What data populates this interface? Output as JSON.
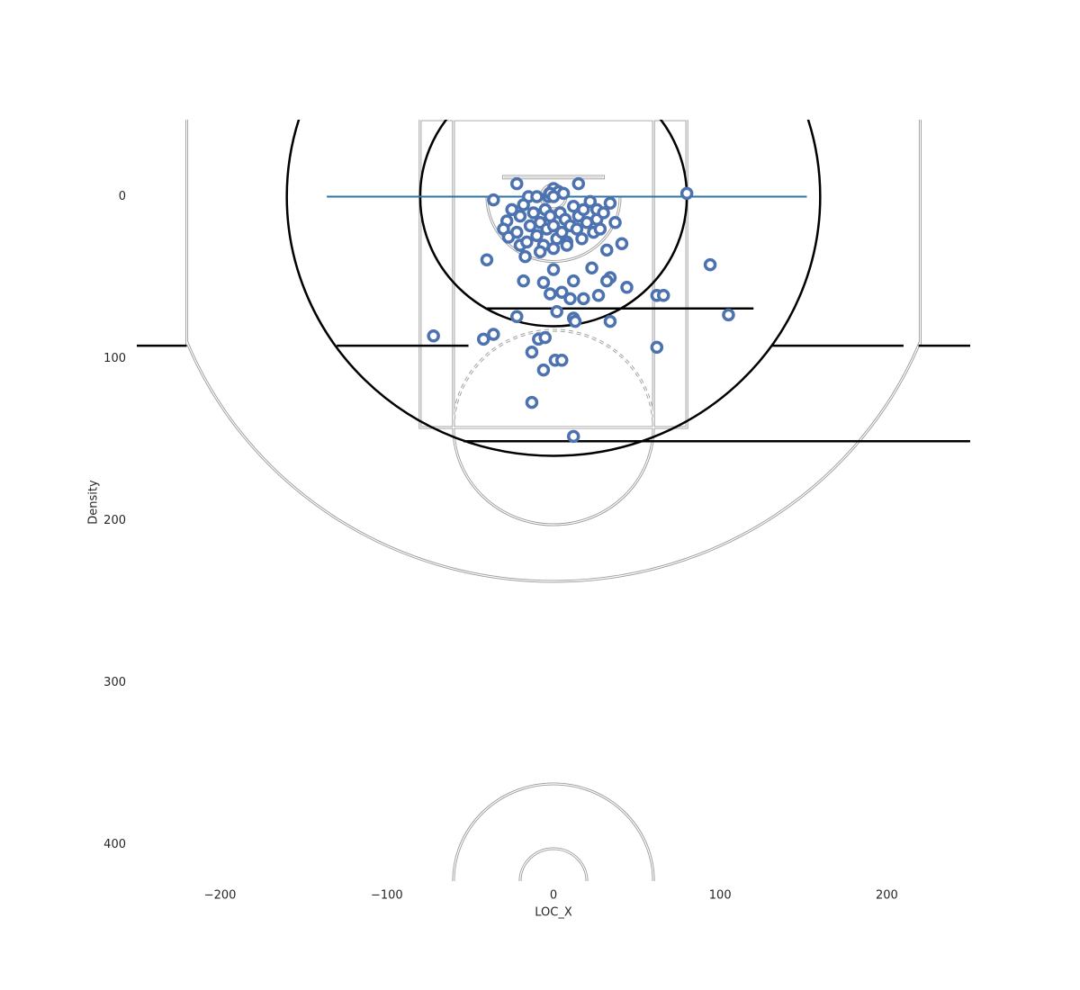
{
  "chart_data": {
    "type": "scatter",
    "xlabel": "LOC_X",
    "ylabel": "Density",
    "color": "#4c72b0",
    "xlim": [
      -250,
      250
    ],
    "ylim": [
      422.5,
      -47.5
    ],
    "xticks": [
      {
        "value": -200,
        "label": "−200"
      },
      {
        "value": -100,
        "label": "−100"
      },
      0,
      100,
      200
    ],
    "yticks": [
      0,
      100,
      200,
      300,
      400
    ],
    "x": [
      -22,
      15,
      80,
      -36,
      34,
      26,
      37,
      41,
      32,
      -40,
      94,
      0,
      23,
      -18,
      12,
      -6,
      34,
      32,
      44,
      -2,
      5,
      10,
      18,
      27,
      62,
      66,
      2,
      -22,
      12,
      13,
      34,
      105,
      -72,
      -36,
      -42,
      -9,
      -5,
      -13,
      62,
      1,
      5,
      -6,
      -13,
      12,
      -15,
      -10,
      -3,
      0,
      3,
      6,
      -25,
      -20,
      -18,
      -28,
      -30,
      -27,
      -22,
      -20,
      -16,
      -14,
      -12,
      -10,
      -8,
      -6,
      -5,
      -4,
      -2,
      0,
      2,
      4,
      5,
      7,
      8,
      10,
      12,
      14,
      15,
      17,
      18,
      20,
      22,
      24,
      26,
      28,
      30,
      -17,
      -8,
      0,
      8,
      -2,
      0
    ],
    "values": [
      -8,
      -8,
      -2,
      2,
      4,
      8,
      16,
      29,
      33,
      39,
      42,
      45,
      44,
      52,
      52,
      53,
      50,
      52,
      56,
      60,
      59,
      63,
      63,
      61,
      61,
      61,
      71,
      74,
      75,
      77,
      77,
      73,
      86,
      85,
      88,
      88,
      87,
      96,
      93,
      101,
      101,
      107,
      127,
      148,
      0,
      0,
      0,
      -5,
      -3,
      -2,
      8,
      12,
      5,
      15,
      20,
      25,
      22,
      30,
      28,
      18,
      10,
      24,
      16,
      30,
      8,
      20,
      12,
      18,
      26,
      10,
      22,
      14,
      28,
      18,
      6,
      20,
      12,
      26,
      8,
      16,
      3,
      22,
      14,
      20,
      10,
      37,
      34,
      32,
      30,
      -2,
      0
    ]
  }
}
